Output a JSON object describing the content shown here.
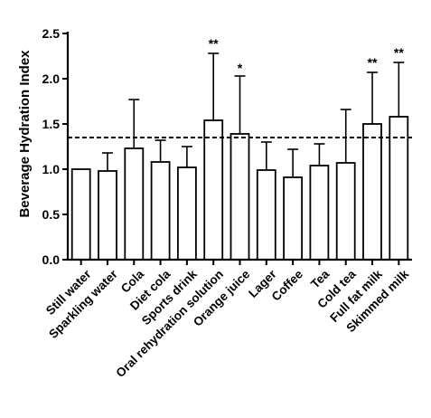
{
  "chart_data": {
    "type": "bar",
    "ylabel": "Beverage Hydration Index",
    "ylim": [
      0,
      2.5
    ],
    "yticks": [
      "0.0",
      "0.5",
      "1.0",
      "1.5",
      "2.0",
      "2.5"
    ],
    "reference_line": 1.35,
    "categories": [
      "Still water",
      "Sparkling water",
      "Cola",
      "Diet cola",
      "Sports drink",
      "Oral rehydration solution",
      "Orange juice",
      "Lager",
      "Coffee",
      "Tea",
      "Cold tea",
      "Full fat milk",
      "Skimmed milk"
    ],
    "values": [
      1.0,
      0.98,
      1.23,
      1.08,
      1.02,
      1.54,
      1.39,
      0.99,
      0.91,
      1.04,
      1.07,
      1.5,
      1.58
    ],
    "error_upper": [
      1.0,
      1.18,
      1.77,
      1.32,
      1.25,
      2.28,
      2.03,
      1.3,
      1.22,
      1.28,
      1.66,
      2.07,
      2.18
    ],
    "significance": [
      "",
      "",
      "",
      "",
      "",
      "**",
      "*",
      "",
      "",
      "",
      "",
      "**",
      "**"
    ]
  }
}
